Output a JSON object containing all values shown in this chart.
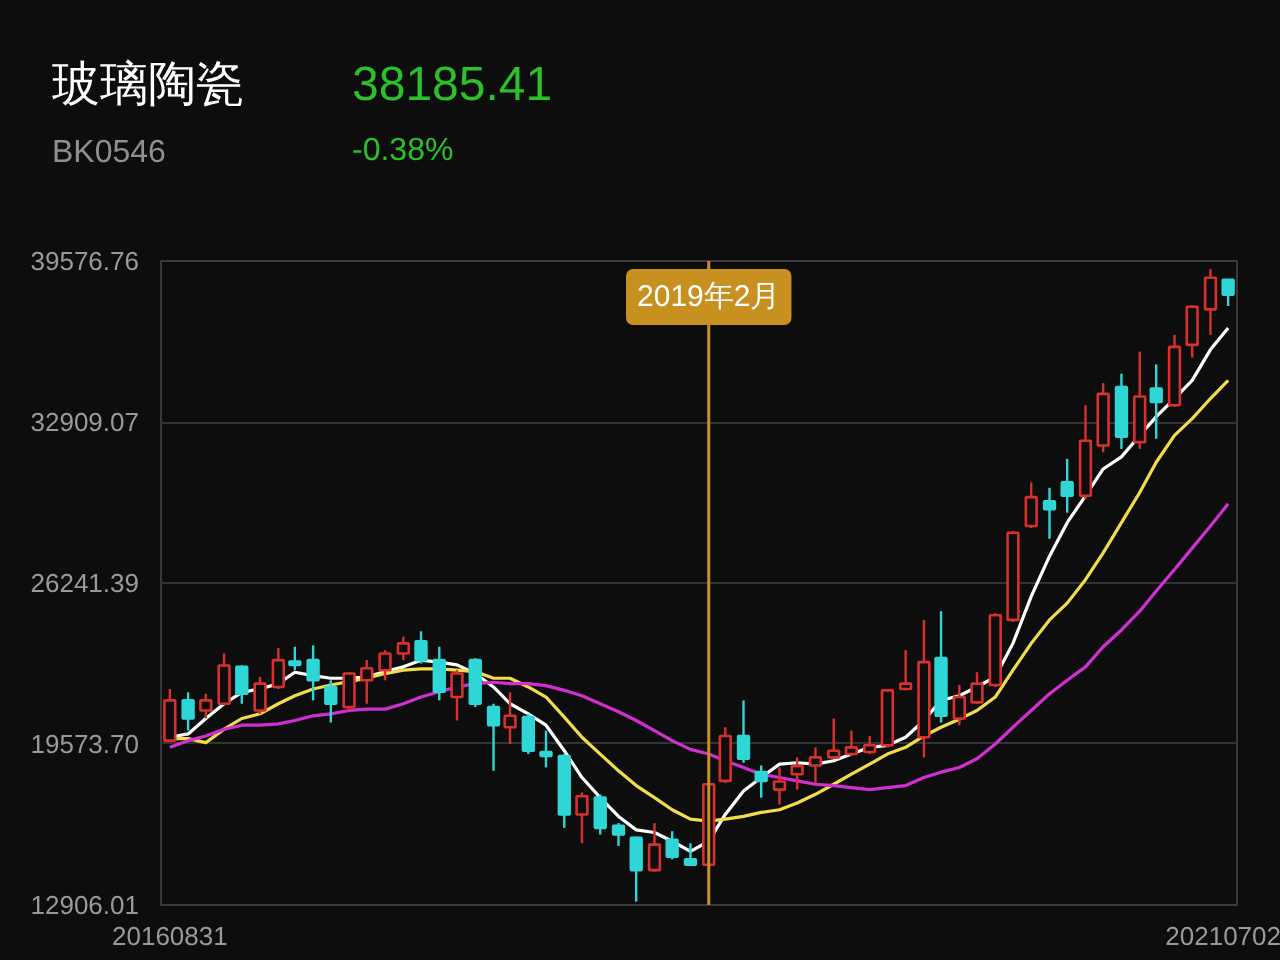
{
  "chart_data": {
    "type": "candlestick",
    "title": "玻璃陶瓷",
    "subtitle": "BK0546",
    "annotations": [
      "38185.41",
      "-0.38%"
    ],
    "x": [
      "2016-08",
      "2016-09",
      "2016-10",
      "2016-11",
      "2016-12",
      "2017-01",
      "2017-02",
      "2017-03",
      "2017-04",
      "2017-05",
      "2017-06",
      "2017-07",
      "2017-08",
      "2017-09",
      "2017-10",
      "2017-11",
      "2017-12",
      "2018-01",
      "2018-02",
      "2018-03",
      "2018-04",
      "2018-05",
      "2018-06",
      "2018-07",
      "2018-08",
      "2018-09",
      "2018-10",
      "2018-11",
      "2018-12",
      "2019-01",
      "2019-02",
      "2019-03",
      "2019-04",
      "2019-05",
      "2019-06",
      "2019-07",
      "2019-08",
      "2019-09",
      "2019-10",
      "2019-11",
      "2019-12",
      "2020-01",
      "2020-02",
      "2020-03",
      "2020-04",
      "2020-05",
      "2020-06",
      "2020-07",
      "2020-08",
      "2020-09",
      "2020-10",
      "2020-11",
      "2020-12",
      "2021-01",
      "2021-02",
      "2021-03",
      "2021-04",
      "2021-05",
      "2021-06",
      "2021-07"
    ],
    "ohlc": [
      [
        19713,
        21852,
        19713,
        21380
      ],
      [
        21380,
        21713,
        20130,
        20630
      ],
      [
        20963,
        21658,
        20630,
        21380
      ],
      [
        21241,
        23324,
        21241,
        22824
      ],
      [
        22769,
        22824,
        21241,
        21658
      ],
      [
        20963,
        22352,
        20824,
        22074
      ],
      [
        21935,
        23547,
        21852,
        23047
      ],
      [
        22991,
        23602,
        22630,
        22852
      ],
      [
        23047,
        23658,
        21380,
        22213
      ],
      [
        21935,
        22213,
        20463,
        21241
      ],
      [
        21102,
        22547,
        20963,
        22491
      ],
      [
        22213,
        23047,
        21241,
        22713
      ],
      [
        22630,
        23463,
        22213,
        23324
      ],
      [
        23324,
        24019,
        23047,
        23741
      ],
      [
        23824,
        24241,
        22908,
        23047
      ],
      [
        23047,
        23602,
        21380,
        21741
      ],
      [
        21519,
        22630,
        20546,
        22491
      ],
      [
        23047,
        23130,
        21102,
        21241
      ],
      [
        21102,
        21241,
        18463,
        20352
      ],
      [
        20269,
        21713,
        19574,
        20741
      ],
      [
        20685,
        20824,
        19157,
        19296
      ],
      [
        19241,
        20130,
        18602,
        19074
      ],
      [
        19074,
        19157,
        16102,
        16657
      ],
      [
        16657,
        17574,
        15463,
        17407
      ],
      [
        17352,
        17491,
        15824,
        16102
      ],
      [
        16185,
        16296,
        15352,
        15824
      ],
      [
        15685,
        15741,
        13046,
        14352
      ],
      [
        14352,
        16296,
        14296,
        15407
      ],
      [
        15602,
        15963,
        14796,
        14907
      ],
      [
        14796,
        15463,
        14518,
        14574
      ],
      [
        14574,
        17963,
        14518,
        17907
      ],
      [
        18046,
        20269,
        17963,
        19907
      ],
      [
        19907,
        21380,
        18796,
        18963
      ],
      [
        18408,
        18685,
        17352,
        18046
      ],
      [
        17685,
        18602,
        17074,
        18019
      ],
      [
        18324,
        19019,
        17685,
        18658
      ],
      [
        18685,
        19435,
        17963,
        19019
      ],
      [
        19019,
        20630,
        18963,
        19296
      ],
      [
        19157,
        20130,
        19074,
        19435
      ],
      [
        19241,
        19907,
        19157,
        19519
      ],
      [
        19519,
        21852,
        19435,
        21796
      ],
      [
        21852,
        23463,
        21796,
        22074
      ],
      [
        19852,
        24713,
        19019,
        22963
      ],
      [
        23130,
        25074,
        20463,
        20741
      ],
      [
        20630,
        22019,
        20352,
        21519
      ],
      [
        21296,
        22547,
        21241,
        22074
      ],
      [
        22019,
        24991,
        21935,
        24908
      ],
      [
        24713,
        28380,
        24630,
        28324
      ],
      [
        28602,
        30407,
        28519,
        29796
      ],
      [
        29630,
        30185,
        28074,
        29296
      ],
      [
        30407,
        31380,
        29157,
        29852
      ],
      [
        29852,
        33602,
        29713,
        32130
      ],
      [
        31935,
        34519,
        31657,
        34074
      ],
      [
        34352,
        34908,
        31796,
        32296
      ],
      [
        32074,
        35824,
        31796,
        33963
      ],
      [
        34296,
        35296,
        32213,
        33741
      ],
      [
        33602,
        36519,
        33546,
        36019
      ],
      [
        36102,
        37741,
        35574,
        37685
      ],
      [
        37574,
        39241,
        36519,
        38880
      ],
      [
        38796,
        38796,
        37713,
        38185
      ]
    ],
    "series": [
      {
        "type": "line",
        "color": "#ffffff",
        "values": [
          19852,
          19991,
          20630,
          21241,
          21713,
          21852,
          22074,
          22546,
          22408,
          22296,
          22296,
          22352,
          22574,
          22769,
          23046,
          22963,
          22852,
          22491,
          21935,
          21241,
          20824,
          20352,
          19296,
          18185,
          17352,
          16574,
          16018,
          15907,
          15546,
          15129,
          15546,
          16657,
          17629,
          18185,
          18741,
          18796,
          18741,
          18879,
          19157,
          19435,
          19518,
          19852,
          20546,
          21380,
          21574,
          21935,
          22352,
          23741,
          25686,
          27352,
          28741,
          29853,
          30964,
          31464,
          32353,
          33131,
          33881,
          34631,
          35909,
          36798
        ]
      },
      {
        "type": "line",
        "color": "#f2dc4a",
        "values": [
          19796,
          19796,
          19630,
          20185,
          20630,
          20824,
          21241,
          21574,
          21852,
          22019,
          22158,
          22296,
          22491,
          22630,
          22685,
          22685,
          22630,
          22574,
          22296,
          22296,
          21935,
          21519,
          20685,
          19852,
          19157,
          18463,
          17852,
          17352,
          16852,
          16463,
          16379,
          16463,
          16574,
          16740,
          16852,
          17129,
          17490,
          17907,
          18324,
          18741,
          19157,
          19435,
          19907,
          20268,
          20602,
          20963,
          21519,
          22630,
          23741,
          24713,
          25408,
          26380,
          27491,
          28741,
          29991,
          31242,
          32353,
          33047,
          33881,
          34631
        ]
      },
      {
        "type": "line",
        "color": "#d22fd2",
        "values": [
          19435,
          19713,
          19907,
          20185,
          20352,
          20352,
          20407,
          20546,
          20741,
          20824,
          20963,
          21019,
          21019,
          21241,
          21519,
          21741,
          21935,
          22074,
          22130,
          22074,
          22074,
          21991,
          21796,
          21574,
          21241,
          20907,
          20546,
          20130,
          19713,
          19352,
          19157,
          18879,
          18602,
          18324,
          18185,
          18046,
          17907,
          17852,
          17768,
          17685,
          17768,
          17852,
          18185,
          18407,
          18602,
          18963,
          19574,
          20268,
          20963,
          21657,
          22213,
          22769,
          23602,
          24297,
          25074,
          25908,
          26797,
          27686,
          28602,
          29519
        ]
      }
    ],
    "xlim": [
      "2016-07-17",
      "2021-07-16"
    ],
    "xticks": [
      {
        "value": "2016-08",
        "label": "20160831"
      },
      {
        "value": "2021-07",
        "label": "20210702"
      }
    ],
    "ylim": [
      12906.01,
      39576.76
    ],
    "yticks": [
      12906.01,
      {
        "value": 19573.7,
        "label": "19573.70"
      },
      26241.39,
      32909.07,
      39576.76
    ],
    "ref_lines": [
      {
        "axis": "x",
        "value": "2019-02",
        "label": "2019年2月",
        "color": "#c8901f"
      }
    ],
    "grid": "y"
  }
}
